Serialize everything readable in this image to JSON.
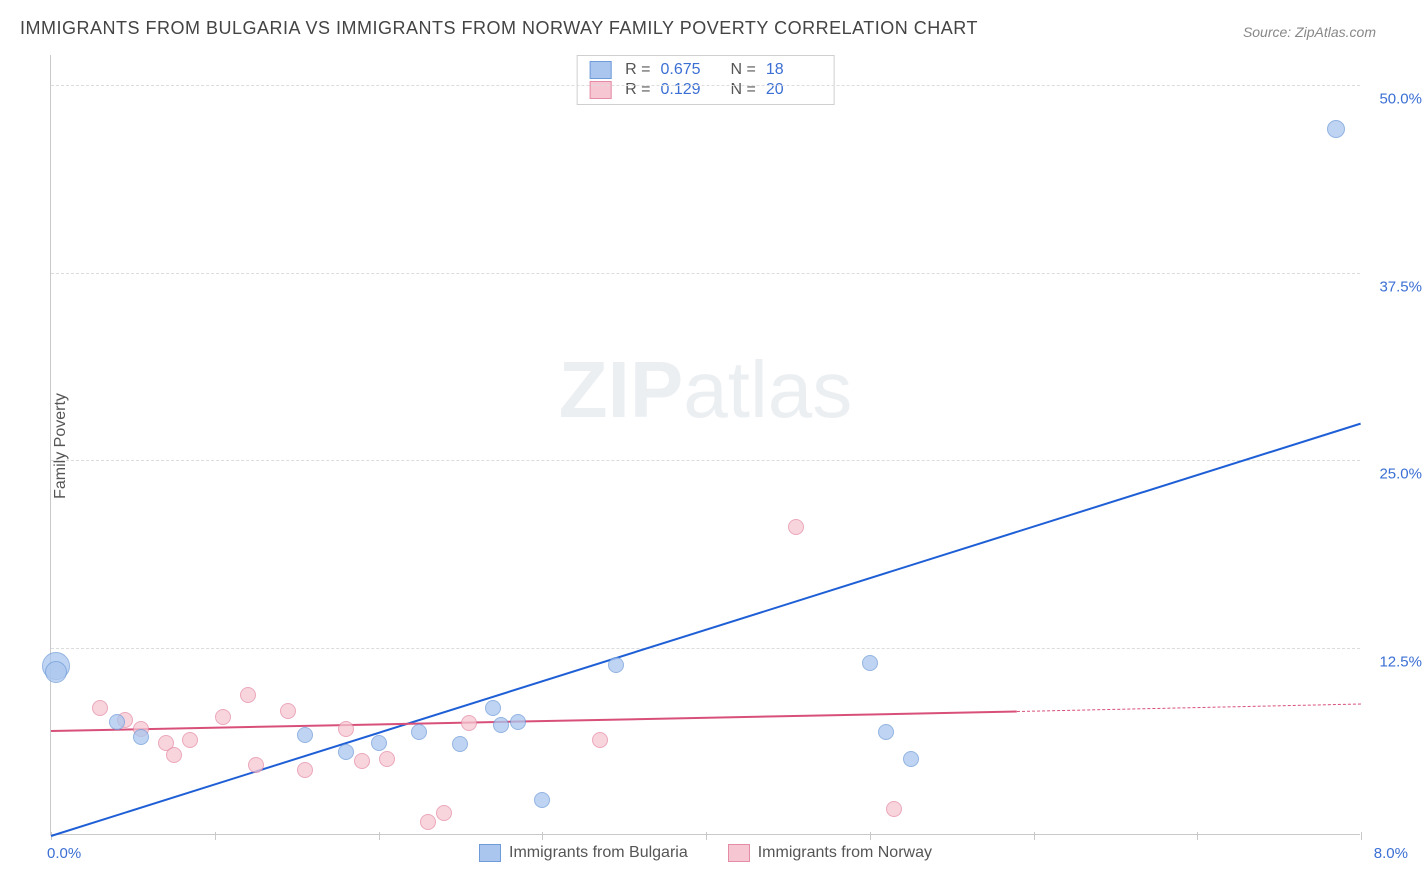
{
  "title": "IMMIGRANTS FROM BULGARIA VS IMMIGRANTS FROM NORWAY FAMILY POVERTY CORRELATION CHART",
  "source_label": "Source:",
  "source_value": "ZipAtlas.com",
  "watermark_a": "ZIP",
  "watermark_b": "atlas",
  "chart": {
    "type": "scatter",
    "ylabel": "Family Poverty",
    "xlim": [
      0.0,
      8.0
    ],
    "ylim": [
      0.0,
      52.0
    ],
    "xlim_labels": [
      "0.0%",
      "8.0%"
    ],
    "ytick_values": [
      12.5,
      25.0,
      37.5,
      50.0
    ],
    "ytick_labels": [
      "12.5%",
      "25.0%",
      "37.5%",
      "50.0%"
    ],
    "xtick_values": [
      0,
      1,
      2,
      3,
      4,
      5,
      6,
      7,
      8
    ],
    "background_color": "#ffffff",
    "grid_color": "#dcdcdc",
    "axis_color": "#c9c9c9",
    "tick_label_color": "#3b6fd4",
    "label_fontsize": 16,
    "title_fontsize": 18,
    "series": [
      {
        "name": "Immigrants from Bulgaria",
        "fill_color": "#aac6ee",
        "stroke_color": "#6f9cd9",
        "opacity": 0.75,
        "marker_radius": 8,
        "r_value": "0.675",
        "n_value": "18",
        "trend": {
          "x1": 0.0,
          "y1": 0.0,
          "x2": 8.0,
          "y2": 27.5,
          "color": "#1f5fd6",
          "width": 2
        },
        "points": [
          {
            "x": 0.03,
            "y": 11.2,
            "r": 14
          },
          {
            "x": 0.03,
            "y": 10.8,
            "r": 11
          },
          {
            "x": 0.55,
            "y": 6.5,
            "r": 8
          },
          {
            "x": 0.4,
            "y": 7.5,
            "r": 8
          },
          {
            "x": 1.55,
            "y": 6.6,
            "r": 8
          },
          {
            "x": 1.8,
            "y": 5.5,
            "r": 8
          },
          {
            "x": 2.0,
            "y": 6.1,
            "r": 8
          },
          {
            "x": 2.25,
            "y": 6.8,
            "r": 8
          },
          {
            "x": 2.5,
            "y": 6.0,
            "r": 8
          },
          {
            "x": 2.7,
            "y": 8.4,
            "r": 8
          },
          {
            "x": 2.75,
            "y": 7.3,
            "r": 8
          },
          {
            "x": 2.85,
            "y": 7.5,
            "r": 8
          },
          {
            "x": 3.0,
            "y": 2.3,
            "r": 8
          },
          {
            "x": 3.45,
            "y": 11.3,
            "r": 8
          },
          {
            "x": 5.0,
            "y": 11.4,
            "r": 8
          },
          {
            "x": 5.25,
            "y": 5.0,
            "r": 8
          },
          {
            "x": 5.1,
            "y": 6.8,
            "r": 8
          },
          {
            "x": 7.85,
            "y": 47.0,
            "r": 9
          }
        ]
      },
      {
        "name": "Immigrants from Norway",
        "fill_color": "#f6c6d2",
        "stroke_color": "#e48ba5",
        "opacity": 0.75,
        "marker_radius": 8,
        "r_value": "0.129",
        "n_value": "20",
        "trend": {
          "x1": 0.0,
          "y1": 7.0,
          "x2": 5.9,
          "y2": 8.3,
          "color": "#d8507a",
          "width": 2,
          "dash_ext": {
            "x2": 8.0,
            "y2": 8.8
          }
        },
        "points": [
          {
            "x": 0.3,
            "y": 8.4,
            "r": 8
          },
          {
            "x": 0.45,
            "y": 7.6,
            "r": 8
          },
          {
            "x": 0.55,
            "y": 7.0,
            "r": 8
          },
          {
            "x": 0.7,
            "y": 6.1,
            "r": 8
          },
          {
            "x": 0.85,
            "y": 6.3,
            "r": 8
          },
          {
            "x": 0.75,
            "y": 5.3,
            "r": 8
          },
          {
            "x": 1.05,
            "y": 7.8,
            "r": 8
          },
          {
            "x": 1.2,
            "y": 9.3,
            "r": 8
          },
          {
            "x": 1.25,
            "y": 4.6,
            "r": 8
          },
          {
            "x": 1.45,
            "y": 8.2,
            "r": 8
          },
          {
            "x": 1.55,
            "y": 4.3,
            "r": 8
          },
          {
            "x": 1.8,
            "y": 7.0,
            "r": 8
          },
          {
            "x": 1.9,
            "y": 4.9,
            "r": 8
          },
          {
            "x": 2.05,
            "y": 5.0,
            "r": 8
          },
          {
            "x": 2.3,
            "y": 0.8,
            "r": 8
          },
          {
            "x": 2.4,
            "y": 1.4,
            "r": 8
          },
          {
            "x": 2.55,
            "y": 7.4,
            "r": 8
          },
          {
            "x": 3.35,
            "y": 6.3,
            "r": 8
          },
          {
            "x": 4.55,
            "y": 20.5,
            "r": 8
          },
          {
            "x": 5.15,
            "y": 1.7,
            "r": 8
          }
        ]
      }
    ],
    "legend_bottom": [
      {
        "label": "Immigrants from Bulgaria",
        "fill": "#aac6ee",
        "stroke": "#6f9cd9"
      },
      {
        "label": "Immigrants from Norway",
        "fill": "#f6c6d2",
        "stroke": "#e48ba5"
      }
    ]
  }
}
